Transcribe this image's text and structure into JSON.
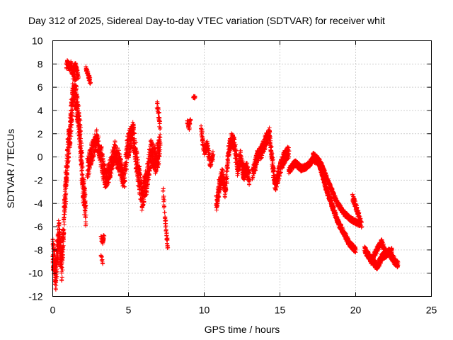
{
  "chart_data": {
    "type": "scatter",
    "title": "Day 312 of 2025, Sidereal Day-to-day VTEC variation (SDTVAR) for receiver whit",
    "xlabel": "GPS time / hours",
    "ylabel": "SDTVAR / TECUs",
    "xlim": [
      0,
      25
    ],
    "ylim": [
      -12,
      10
    ],
    "xticks": [
      0,
      5,
      10,
      15,
      20,
      25
    ],
    "yticks": [
      -12,
      -10,
      -8,
      -6,
      -4,
      -2,
      0,
      2,
      4,
      6,
      8,
      10
    ],
    "grid": true,
    "marker": "+",
    "color": "#ff0000",
    "series": [
      {
        "name": "SDTVAR",
        "segments": [
          {
            "x": [
              0.0,
              0.2,
              0.4,
              0.6,
              0.8,
              1.0,
              1.2,
              1.4,
              1.6,
              1.8,
              2.0,
              2.2
            ],
            "y": [
              -8.0,
              -10.2,
              -6.5,
              -9.5,
              -4.0,
              0.5,
              3.0,
              6.5,
              4.5,
              2.0,
              -2.5,
              -5.0
            ],
            "spread": 2.5,
            "n": 10
          },
          {
            "x": [
              0.9,
              1.0,
              1.1,
              1.2,
              1.3,
              1.5,
              1.7
            ],
            "y": [
              7.8,
              8.1,
              7.5,
              8.0,
              7.2,
              7.9,
              6.8
            ],
            "spread": 0.6,
            "n": 4
          },
          {
            "x": [
              2.2,
              2.3,
              2.4,
              2.5
            ],
            "y": [
              7.6,
              7.2,
              6.8,
              6.4
            ],
            "spread": 0.5,
            "n": 4
          },
          {
            "x": [
              2.3,
              2.6,
              2.9,
              3.2,
              3.5,
              3.8,
              4.1,
              4.4,
              4.7,
              5.0
            ],
            "y": [
              -1.0,
              0.5,
              1.5,
              0.0,
              -2.0,
              -1.0,
              0.5,
              -0.5,
              -2.0,
              1.5
            ],
            "spread": 1.8,
            "n": 6
          },
          {
            "x": [
              3.2,
              3.3,
              3.4
            ],
            "y": [
              -7.0,
              -7.3,
              -6.8
            ],
            "spread": 0.4,
            "n": 4
          },
          {
            "x": [
              3.2,
              3.3
            ],
            "y": [
              -8.5,
              -9.2
            ],
            "spread": 0.2,
            "n": 2
          },
          {
            "x": [
              5.0,
              5.3,
              5.6,
              5.9,
              6.2,
              6.5,
              6.8,
              7.1
            ],
            "y": [
              1.0,
              2.0,
              -1.0,
              -3.5,
              -2.0,
              0.5,
              -0.5,
              1.0
            ],
            "spread": 2.2,
            "n": 7
          },
          {
            "x": [
              6.9,
              7.0,
              7.1
            ],
            "y": [
              4.5,
              3.5,
              2.5
            ],
            "spread": 0.8,
            "n": 4
          },
          {
            "x": [
              7.3,
              7.4,
              7.5,
              7.6
            ],
            "y": [
              -3.0,
              -5.0,
              -6.5,
              -7.8
            ],
            "spread": 0.8,
            "n": 4
          },
          {
            "x": [
              8.9,
              9.0,
              9.1
            ],
            "y": [
              3.0,
              2.5,
              3.2
            ],
            "spread": 0.5,
            "n": 4
          },
          {
            "x": [
              9.3,
              9.4
            ],
            "y": [
              5.2,
              5.1
            ],
            "spread": 0.2,
            "n": 3
          },
          {
            "x": [
              9.8,
              10.0,
              10.2,
              10.4,
              10.6
            ],
            "y": [
              2.5,
              0.5,
              1.0,
              -0.5,
              0.2
            ],
            "spread": 0.8,
            "n": 4
          },
          {
            "x": [
              10.8,
              11.0,
              11.2,
              11.4,
              11.6,
              11.8,
              12.0,
              12.2,
              12.4,
              12.6,
              12.8,
              13.0
            ],
            "y": [
              -4.0,
              -2.5,
              -1.5,
              -3.0,
              0.5,
              1.5,
              1.0,
              -1.0,
              0.0,
              -1.5,
              -1.0,
              -2.0
            ],
            "spread": 1.2,
            "n": 6
          },
          {
            "x": [
              13.2,
              13.5,
              13.8,
              14.1,
              14.3,
              14.5,
              14.7,
              15.0,
              15.3,
              15.6
            ],
            "y": [
              -1.5,
              0.0,
              0.5,
              1.5,
              2.0,
              -0.5,
              -2.5,
              -1.0,
              0.0,
              0.5
            ],
            "spread": 1.1,
            "n": 6
          },
          {
            "x": [
              15.6,
              16.0,
              16.4,
              16.8,
              17.2,
              17.6,
              18.0,
              18.4,
              18.8,
              19.2,
              19.6,
              20.0
            ],
            "y": [
              -1.2,
              -0.5,
              -1.0,
              -0.8,
              -0.2,
              -0.5,
              -2.5,
              -4.0,
              -5.5,
              -6.5,
              -7.5,
              -8.0
            ],
            "spread": 0.5,
            "n": 6
          },
          {
            "x": [
              17.2,
              17.6,
              18.0,
              18.4,
              18.8,
              19.2,
              19.6,
              20.0,
              20.3
            ],
            "y": [
              0.2,
              -0.3,
              -1.5,
              -2.8,
              -4.0,
              -4.8,
              -5.3,
              -5.6,
              -5.8
            ],
            "spread": 0.4,
            "n": 5
          },
          {
            "x": [
              19.8,
              20.0,
              20.2,
              20.4
            ],
            "y": [
              -3.5,
              -4.2,
              -5.0,
              -6.0
            ],
            "spread": 0.6,
            "n": 4
          },
          {
            "x": [
              20.6,
              21.0,
              21.4,
              21.8,
              22.2,
              22.6,
              22.8
            ],
            "y": [
              -8.0,
              -8.8,
              -9.4,
              -8.5,
              -8.2,
              -9.0,
              -9.3
            ],
            "spread": 0.6,
            "n": 6
          },
          {
            "x": [
              21.0,
              21.4,
              21.7,
              22.0,
              22.4
            ],
            "y": [
              -9.0,
              -8.0,
              -7.3,
              -8.3,
              -8.0
            ],
            "spread": 0.5,
            "n": 4
          }
        ]
      }
    ]
  }
}
